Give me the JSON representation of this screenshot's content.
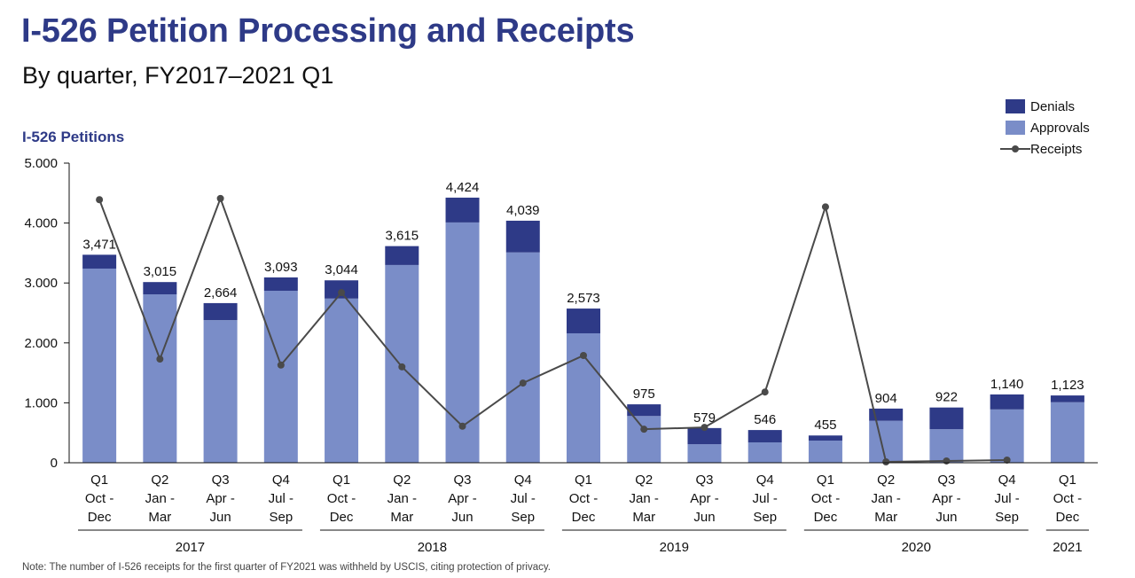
{
  "header": {
    "title": "I-526 Petition Processing and Receipts",
    "subtitle": "By quarter, FY2017–2021 Q1"
  },
  "legend": {
    "items": [
      {
        "label": "Denials",
        "color": "#2e3a87",
        "kind": "bar"
      },
      {
        "label": "Approvals",
        "color": "#7a8dc8",
        "kind": "bar"
      },
      {
        "label": "Receipts",
        "color": "#4a4a4a",
        "kind": "line"
      }
    ]
  },
  "note": "Note: The number of I-526 receipts for the first quarter of FY2021 was withheld by USCIS, citing protection of privacy.",
  "chart_data": {
    "type": "bar",
    "stacked": true,
    "title": "I-526 Petition Processing and Receipts",
    "subtitle": "By quarter, FY2017–2021 Q1",
    "ylabel": "I-526 Petitions",
    "xlabel": "",
    "ylim": [
      0,
      5000
    ],
    "yticks": [
      0,
      1000,
      2000,
      3000,
      4000,
      5000
    ],
    "ytick_labels": [
      "0",
      "1.000",
      "2.000",
      "3.000",
      "4.000",
      "5.000"
    ],
    "grid": false,
    "legend_position": "top-right",
    "categories": [
      {
        "q": "Q1",
        "months": [
          "Oct -",
          "Dec"
        ]
      },
      {
        "q": "Q2",
        "months": [
          "Jan -",
          "Mar"
        ]
      },
      {
        "q": "Q3",
        "months": [
          "Apr -",
          "Jun"
        ]
      },
      {
        "q": "Q4",
        "months": [
          "Jul -",
          "Sep"
        ]
      },
      {
        "q": "Q1",
        "months": [
          "Oct -",
          "Dec"
        ]
      },
      {
        "q": "Q2",
        "months": [
          "Jan -",
          "Mar"
        ]
      },
      {
        "q": "Q3",
        "months": [
          "Apr -",
          "Jun"
        ]
      },
      {
        "q": "Q4",
        "months": [
          "Jul -",
          "Sep"
        ]
      },
      {
        "q": "Q1",
        "months": [
          "Oct -",
          "Dec"
        ]
      },
      {
        "q": "Q2",
        "months": [
          "Jan -",
          "Mar"
        ]
      },
      {
        "q": "Q3",
        "months": [
          "Apr -",
          "Jun"
        ]
      },
      {
        "q": "Q4",
        "months": [
          "Jul -",
          "Sep"
        ]
      },
      {
        "q": "Q1",
        "months": [
          "Oct -",
          "Dec"
        ]
      },
      {
        "q": "Q2",
        "months": [
          "Jan -",
          "Mar"
        ]
      },
      {
        "q": "Q3",
        "months": [
          "Apr -",
          "Jun"
        ]
      },
      {
        "q": "Q4",
        "months": [
          "Jul -",
          "Sep"
        ]
      },
      {
        "q": "Q1",
        "months": [
          "Oct -",
          "Dec"
        ]
      }
    ],
    "year_groups": [
      {
        "label": "2017",
        "start": 0,
        "end": 3
      },
      {
        "label": "2018",
        "start": 4,
        "end": 7
      },
      {
        "label": "2019",
        "start": 8,
        "end": 11
      },
      {
        "label": "2020",
        "start": 12,
        "end": 15
      },
      {
        "label": "2021",
        "start": 16,
        "end": 16
      }
    ],
    "totals": [
      3471,
      3015,
      2664,
      3093,
      3044,
      3615,
      4424,
      4039,
      2573,
      975,
      579,
      546,
      455,
      904,
      922,
      1140,
      1123
    ],
    "total_labels": [
      "3,471",
      "3,015",
      "2,664",
      "3,093",
      "3,044",
      "3,615",
      "4,424",
      "4,039",
      "2,573",
      "975",
      "579",
      "546",
      "455",
      "904",
      "922",
      "1,140",
      "1,123"
    ],
    "series": [
      {
        "name": "Approvals",
        "type": "bar",
        "color": "#7a8dc8",
        "values": [
          3240,
          2810,
          2380,
          2870,
          2740,
          3300,
          4010,
          3510,
          2160,
          780,
          310,
          340,
          370,
          700,
          560,
          890,
          1010
        ]
      },
      {
        "name": "Denials",
        "type": "bar",
        "color": "#2e3a87",
        "values": [
          231,
          205,
          284,
          223,
          304,
          315,
          414,
          529,
          413,
          195,
          269,
          206,
          85,
          204,
          362,
          250,
          113
        ]
      },
      {
        "name": "Receipts",
        "type": "line",
        "color": "#4a4a4a",
        "values": [
          4390,
          1730,
          4410,
          1630,
          2840,
          1600,
          610,
          1330,
          1790,
          560,
          590,
          1180,
          4270,
          15,
          30,
          45,
          null
        ]
      }
    ]
  }
}
